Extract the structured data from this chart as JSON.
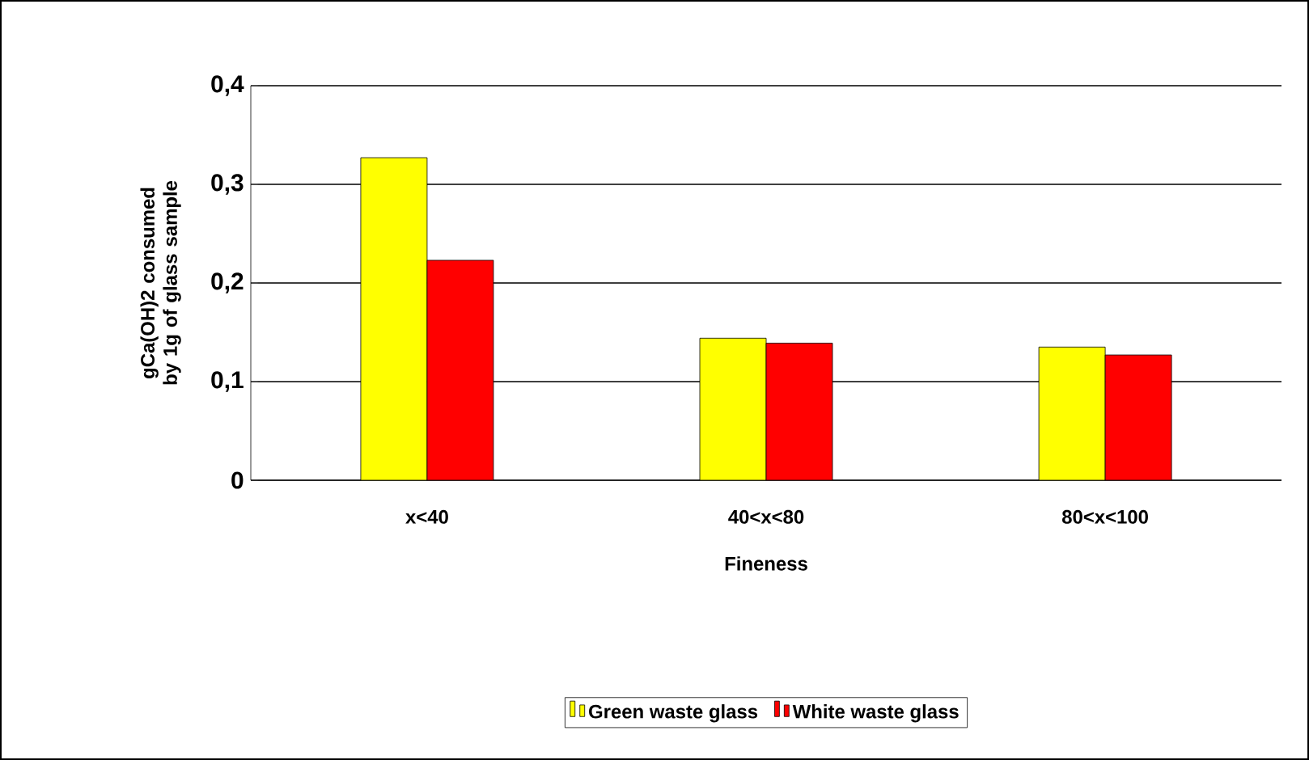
{
  "chart_data": {
    "type": "bar",
    "xlabel": "Fineness",
    "ylabel": "gCa(OH)2 consumed by 1g of glass sample",
    "categories": [
      "x<40",
      "40<x<80",
      "80<x<100"
    ],
    "series": [
      {
        "name": "Green waste glass",
        "color": "#ffff00",
        "values": [
          0.327,
          0.144,
          0.135
        ]
      },
      {
        "name": "White waste glass",
        "color": "#ff0000",
        "values": [
          0.223,
          0.139,
          0.127
        ]
      }
    ],
    "ylim": [
      0,
      0.4
    ],
    "yticks": [
      {
        "value": 0,
        "label": "0"
      },
      {
        "value": 0.1,
        "label": "0,1"
      },
      {
        "value": 0.2,
        "label": "0,2"
      },
      {
        "value": 0.3,
        "label": "0,3"
      },
      {
        "value": 0.4,
        "label": "0,4"
      }
    ],
    "grid": "y",
    "legend": "bottom"
  }
}
